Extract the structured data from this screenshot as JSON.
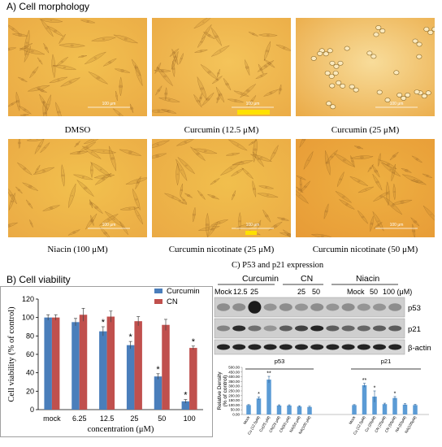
{
  "panel_a": {
    "title": "A) Cell morphology",
    "images": [
      {
        "caption": "DMSO",
        "scale_label": "100 μm",
        "tone": "#f2c050",
        "cells": "spindle"
      },
      {
        "caption": "Curcumin (12.5 μM)",
        "scale_label": "100 μm",
        "tone": "#f4c45a",
        "cells": "spindle"
      },
      {
        "caption": "Curcumin (25 μM)",
        "scale_label": "100 μm",
        "tone": "#f8dc9a",
        "cells": "round"
      },
      {
        "caption": "Niacin (100 μM)",
        "scale_label": "100 μm",
        "tone": "#f2c14e",
        "cells": "spindle"
      },
      {
        "caption": "Curcumin nicotinate (25 μM)",
        "scale_label": "100 μm",
        "tone": "#f1bf4d",
        "cells": "spindle"
      },
      {
        "caption": "Curcumin nicotinate (50 μM)",
        "scale_label": "100 μm",
        "tone": "#eeb042",
        "cells": "spindle"
      }
    ]
  },
  "panel_b": {
    "title": "B) Cell viability",
    "chart_data": {
      "type": "bar",
      "categories": [
        "mock",
        "6.25",
        "12.5",
        "25",
        "50",
        "100"
      ],
      "series": [
        {
          "name": "Curcumin",
          "color": "#4a7ebb",
          "values": [
            100,
            95,
            85,
            70,
            36,
            9
          ],
          "errors": [
            3,
            4,
            5,
            4,
            3,
            2
          ],
          "significant": [
            false,
            false,
            true,
            true,
            true,
            true
          ]
        },
        {
          "name": "CN",
          "color": "#c0504d",
          "values": [
            100,
            103,
            101,
            96,
            92,
            67
          ],
          "errors": [
            3,
            7,
            6,
            5,
            6,
            2
          ],
          "significant": [
            false,
            false,
            false,
            false,
            false,
            true
          ]
        }
      ],
      "xlabel": "concentration (μM)",
      "ylabel": "Cell viability (% of control)",
      "ylim": [
        0,
        120
      ],
      "yticks": [
        0,
        20,
        40,
        60,
        80,
        100,
        120
      ],
      "legend": "top-right",
      "star": "*"
    }
  },
  "panel_c": {
    "title": "C) P53 and p21 expression",
    "groups": [
      "Curcumin",
      "CN",
      "Niacin"
    ],
    "lane_headers": [
      "Mock",
      "12.5",
      "25",
      "25",
      "50",
      "Mock",
      "50",
      "100 (μM)"
    ],
    "blot_labels": [
      "p53",
      "p21",
      "β-actin"
    ],
    "chart_data": {
      "type": "bar",
      "groups": [
        "p53",
        "p21"
      ],
      "categories": [
        "Mock",
        "Cu (12.5μM)",
        "Cu(25 μM)",
        "CN(25 μM)",
        "CN(50 μM)",
        "NA(50 μM)",
        "NA(100 μM)",
        "Mock",
        "Cu (12.5μM)",
        "Cu (25μM)",
        "CN (25μM)",
        "CN (50μM)",
        "NA (50μM)",
        "NA(100μM)"
      ],
      "values": [
        100,
        170,
        370,
        95,
        95,
        85,
        80,
        100,
        310,
        190,
        110,
        175,
        105,
        100
      ],
      "errors": [
        5,
        15,
        35,
        8,
        8,
        8,
        8,
        5,
        20,
        60,
        10,
        15,
        10,
        8
      ],
      "stars": [
        "",
        "*",
        "**",
        "",
        "",
        "",
        "",
        "",
        "**",
        "*",
        "",
        "*",
        "",
        ""
      ],
      "ylabel": "Relative Density (% of control)",
      "ylim": [
        0,
        500
      ],
      "yticks": [
        "0.00",
        "50.00",
        "100.00",
        "150.00",
        "200.00",
        "250.00",
        "300.00",
        "350.00",
        "400.00",
        "450.00",
        "500.00"
      ],
      "color": "#5b9bd5"
    }
  }
}
